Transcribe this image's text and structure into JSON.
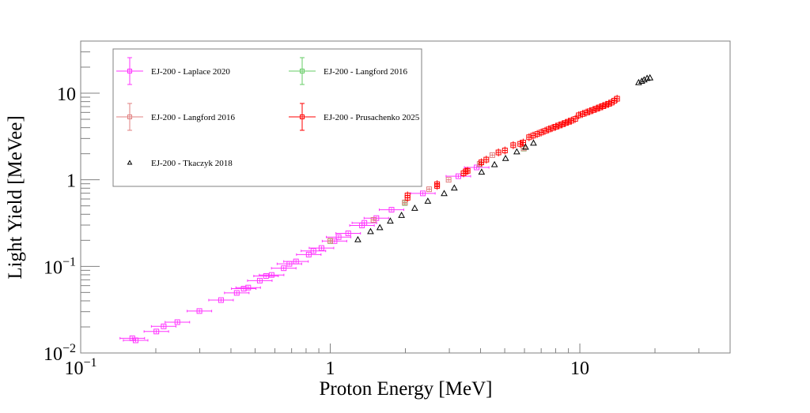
{
  "chart_data": {
    "type": "scatter",
    "title": "",
    "xlabel": "Proton Energy [MeV]",
    "ylabel": "Light Yield [MeVee]",
    "xscale": "log",
    "yscale": "log",
    "xlim": [
      0.1,
      40
    ],
    "ylim": [
      0.01,
      40
    ],
    "grid": false,
    "legend_placement": "top-left",
    "x_tick_labels": [
      {
        "value": 0.1,
        "base": "10",
        "exp": "−1"
      },
      {
        "value": 1,
        "base": "1",
        "exp": ""
      },
      {
        "value": 10,
        "base": "10",
        "exp": ""
      }
    ],
    "y_tick_labels": [
      {
        "value": 0.01,
        "base": "10",
        "exp": "−2"
      },
      {
        "value": 0.1,
        "base": "10",
        "exp": "−1"
      },
      {
        "value": 1,
        "base": "1",
        "exp": ""
      },
      {
        "value": 10,
        "base": "10",
        "exp": ""
      }
    ],
    "series": [
      {
        "name": "EJ-200 - Laplace 2020",
        "marker": "open-square",
        "color": "#ff33ff",
        "errorbars": true,
        "points": [
          [
            0.161,
            0.0148
          ],
          [
            0.166,
            0.014
          ],
          [
            0.201,
            0.0177
          ],
          [
            0.215,
            0.0203
          ],
          [
            0.244,
            0.0227
          ],
          [
            0.299,
            0.0305
          ],
          [
            0.365,
            0.0408
          ],
          [
            0.422,
            0.0494
          ],
          [
            0.45,
            0.0553
          ],
          [
            0.469,
            0.0569
          ],
          [
            0.522,
            0.0685
          ],
          [
            0.553,
            0.0774
          ],
          [
            0.582,
            0.0796
          ],
          [
            0.651,
            0.0952
          ],
          [
            0.686,
            0.107
          ],
          [
            0.729,
            0.114
          ],
          [
            0.82,
            0.137
          ],
          [
            0.856,
            0.151
          ],
          [
            0.922,
            0.163
          ],
          [
            1.04,
            0.196
          ],
          [
            1.08,
            0.218
          ],
          [
            1.18,
            0.241
          ],
          [
            1.34,
            0.297
          ],
          [
            1.37,
            0.318
          ],
          [
            1.53,
            0.361
          ],
          [
            1.76,
            0.451
          ],
          [
            2.35,
            0.697
          ],
          [
            3.26,
            1.1
          ],
          [
            3.86,
            1.39
          ]
        ]
      },
      {
        "name": "EJ-200 - Langford 2016",
        "marker": "open-square",
        "color": "#66cc66",
        "errorbars": true,
        "points": [
          [
            1.0,
            0.196
          ],
          [
            1.99,
            0.54
          ],
          [
            3.97,
            1.52
          ],
          [
            5.96,
            2.29
          ]
        ]
      },
      {
        "name": "EJ-200 - Langford 2016",
        "marker": "open-square",
        "color": "#e08080",
        "errorbars": true,
        "points": [
          [
            1.0,
            0.198
          ],
          [
            1.49,
            0.344
          ],
          [
            1.99,
            0.548
          ],
          [
            2.49,
            0.778
          ],
          [
            2.98,
            1.0
          ],
          [
            3.97,
            1.53
          ],
          [
            4.46,
            1.93
          ],
          [
            5.96,
            2.31
          ]
        ]
      },
      {
        "name": "EJ-200 - Prusachenko 2025",
        "marker": "open-square",
        "color": "#ff0000",
        "errorbars": true,
        "points": [
          [
            2.04,
            0.62
          ],
          [
            2.04,
            0.66
          ],
          [
            2.68,
            0.85
          ],
          [
            2.68,
            0.89
          ],
          [
            3.42,
            1.19
          ],
          [
            3.49,
            1.25
          ],
          [
            3.55,
            1.27
          ],
          [
            4.03,
            1.59
          ],
          [
            4.22,
            1.71
          ],
          [
            4.72,
            2.07
          ],
          [
            5.01,
            2.18
          ],
          [
            5.41,
            2.51
          ],
          [
            5.77,
            2.6
          ],
          [
            5.93,
            2.69
          ],
          [
            6.26,
            3.1
          ],
          [
            6.5,
            3.24
          ],
          [
            6.75,
            3.38
          ],
          [
            7.0,
            3.52
          ],
          [
            7.25,
            3.67
          ],
          [
            7.5,
            3.82
          ],
          [
            7.75,
            3.96
          ],
          [
            8.0,
            4.1
          ],
          [
            8.25,
            4.24
          ],
          [
            8.5,
            4.38
          ],
          [
            8.75,
            4.53
          ],
          [
            9.0,
            4.68
          ],
          [
            9.25,
            4.82
          ],
          [
            9.58,
            5.04
          ],
          [
            9.9,
            5.56
          ],
          [
            10.25,
            5.76
          ],
          [
            10.6,
            5.97
          ],
          [
            10.95,
            6.18
          ],
          [
            11.3,
            6.4
          ],
          [
            11.65,
            6.62
          ],
          [
            12.0,
            6.85
          ],
          [
            12.35,
            7.08
          ],
          [
            12.7,
            7.32
          ],
          [
            13.05,
            7.55
          ],
          [
            13.4,
            7.8
          ],
          [
            13.75,
            8.2
          ],
          [
            14.1,
            8.63
          ]
        ]
      },
      {
        "name": "EJ-200 - Tkaczyk 2018",
        "marker": "open-triangle",
        "color": "#000000",
        "errorbars": false,
        "points": [
          [
            1.29,
            0.204
          ],
          [
            1.45,
            0.253
          ],
          [
            1.58,
            0.281
          ],
          [
            1.74,
            0.335
          ],
          [
            1.93,
            0.39
          ],
          [
            2.18,
            0.471
          ],
          [
            2.46,
            0.568
          ],
          [
            2.86,
            0.696
          ],
          [
            3.14,
            0.806
          ],
          [
            4.04,
            1.23
          ],
          [
            4.55,
            1.5
          ],
          [
            5.04,
            1.77
          ],
          [
            5.59,
            2.11
          ],
          [
            6.06,
            2.39
          ],
          [
            6.52,
            2.66
          ],
          [
            17.2,
            13.3
          ],
          [
            17.7,
            13.8
          ],
          [
            18.1,
            14.3
          ],
          [
            18.6,
            14.9
          ],
          [
            19.1,
            15.1
          ]
        ]
      }
    ],
    "legend": [
      {
        "label": "EJ-200 - Laplace 2020",
        "series": 0
      },
      {
        "label": "EJ-200 - Langford 2016",
        "series": 1
      },
      {
        "label": "EJ-200 - Langford 2016",
        "series": 2
      },
      {
        "label": "EJ-200 - Prusachenko 2025",
        "series": 3
      },
      {
        "label": "EJ-200 - Tkaczyk 2018",
        "series": 4
      }
    ]
  }
}
